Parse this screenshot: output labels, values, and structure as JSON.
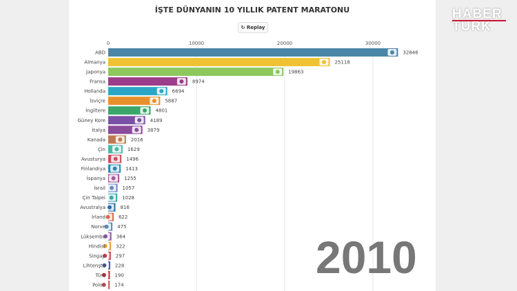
{
  "title": "İŞTE DÜNYANIN 10 YILLIK PATENT MARATONU",
  "replay_label": "↻ Replay",
  "year": "2010",
  "logo": {
    "line1": "HABER",
    "line2": "TÜRK"
  },
  "chart_data": {
    "type": "bar",
    "orientation": "horizontal",
    "xlim": [
      0,
      34000
    ],
    "grid": true,
    "ticks": [
      0,
      10000,
      20000,
      30000
    ],
    "categories": [
      "ABD",
      "Almanya",
      "Japonya",
      "Fransa",
      "Hollanda",
      "İsviçre",
      "İngiltere",
      "Güney Kore",
      "İtalya",
      "Kanada",
      "Çin",
      "Avusturya",
      "Finlandiya",
      "İspanya",
      "İsrail",
      "Çin Taipei",
      "Avustralya",
      "İrland",
      "Norve",
      "Lüksembu",
      "Hindist",
      "Singap",
      "Lihtenşta",
      "Türk",
      "Polon"
    ],
    "values": [
      32846,
      25118,
      19863,
      8974,
      6694,
      5887,
      4801,
      4189,
      3879,
      2016,
      1629,
      1496,
      1413,
      1255,
      1057,
      1028,
      816,
      622,
      475,
      364,
      322,
      297,
      228,
      190,
      174
    ],
    "colors": [
      "#4a86a6",
      "#f0c233",
      "#8dc85e",
      "#9c3c8a",
      "#2ba7c6",
      "#e8912c",
      "#3aa66a",
      "#7a4fa6",
      "#8b4b9b",
      "#c0794f",
      "#48b8a6",
      "#d04b5c",
      "#2a88b6",
      "#a75a98",
      "#6b8ac6",
      "#3aa8a6",
      "#2a6ab0",
      "#d86a4a",
      "#5a8ac0",
      "#8a5aa8",
      "#e8a040",
      "#d04050",
      "#4a5aa8",
      "#c03040",
      "#d05060"
    ]
  }
}
